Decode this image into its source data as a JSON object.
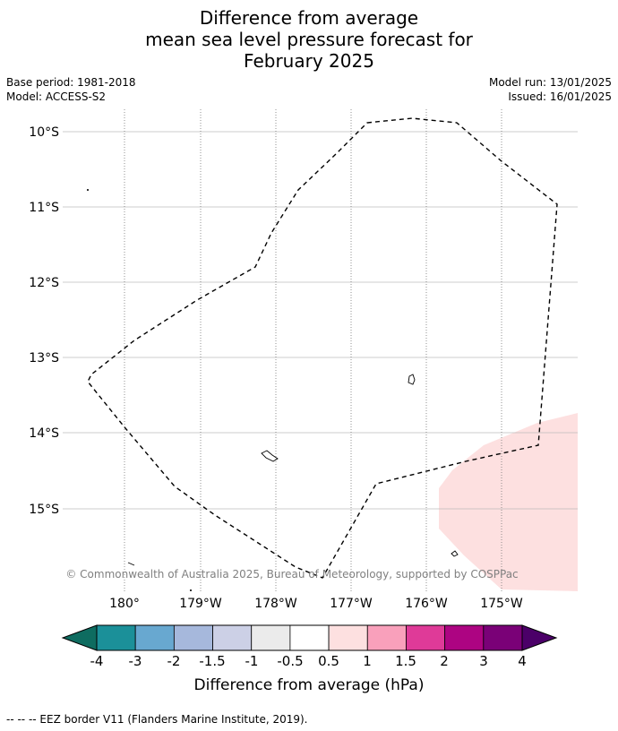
{
  "title": {
    "line1": "Difference from average",
    "line2": "mean sea level pressure forecast for",
    "line3": "February 2025"
  },
  "meta": {
    "base_period": "Base period: 1981-2018",
    "model": "Model: ACCESS-S2",
    "model_run": "Model run: 13/01/2025",
    "issued": "Issued: 16/01/2025"
  },
  "map": {
    "lat_labels": [
      "10°S",
      "11°S",
      "12°S",
      "13°S",
      "14°S",
      "15°S"
    ],
    "lon_labels": [
      "180°",
      "179°W",
      "178°W",
      "177°W",
      "176°W",
      "175°W"
    ],
    "copyright": "© Commonwealth of Australia 2025, Bureau of Meteorology, supported by COSPPac"
  },
  "colorbar": {
    "label": "Difference from average (hPa)",
    "ticks": [
      "-4",
      "-3",
      "-2",
      "-1.5",
      "-1",
      "-0.5",
      "0.5",
      "1",
      "1.5",
      "2",
      "3",
      "4"
    ],
    "colors": [
      "#1b9099",
      "#68a8d0",
      "#a6b8dc",
      "#ccd0e6",
      "#ebebeb",
      "#ffffff",
      "#fde0e0",
      "#f9a0bb",
      "#df3a98",
      "#ad0482",
      "#7a0177"
    ],
    "under_color": "#0e6c60",
    "over_color": "#4b0068"
  },
  "footer": {
    "legend": "--  --  -- EEZ border V11 (Flanders Marine Institute, 2019)."
  }
}
